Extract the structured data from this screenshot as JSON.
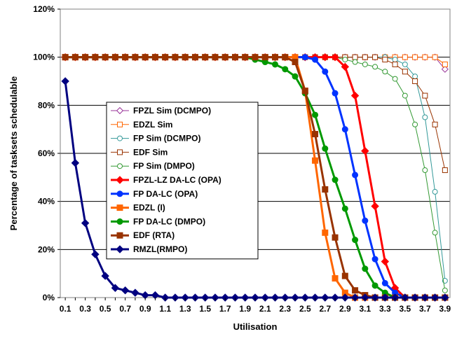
{
  "chart_data": {
    "type": "line",
    "title": "",
    "xlabel": "Utilisation",
    "ylabel": "Percentage of tasksets schedulable",
    "x": [
      0.1,
      0.2,
      0.3,
      0.4,
      0.5,
      0.6,
      0.7,
      0.8,
      0.9,
      1.0,
      1.1,
      1.2,
      1.3,
      1.4,
      1.5,
      1.6,
      1.7,
      1.8,
      1.9,
      2.0,
      2.1,
      2.2,
      2.3,
      2.4,
      2.5,
      2.6,
      2.7,
      2.8,
      2.9,
      3.0,
      3.1,
      3.2,
      3.3,
      3.4,
      3.5,
      3.6,
      3.7,
      3.8,
      3.9
    ],
    "x_tick_labels": [
      "0.1",
      "0.3",
      "0.5",
      "0.7",
      "0.9",
      "1.1",
      "1.3",
      "1.5",
      "1.7",
      "1.9",
      "2.1",
      "2.3",
      "2.5",
      "2.7",
      "2.9",
      "3.1",
      "3.3",
      "3.5",
      "3.7",
      "3.9"
    ],
    "x_tick_values": [
      0.1,
      0.3,
      0.5,
      0.7,
      0.9,
      1.1,
      1.3,
      1.5,
      1.7,
      1.9,
      2.1,
      2.3,
      2.5,
      2.7,
      2.9,
      3.1,
      3.3,
      3.5,
      3.7,
      3.9
    ],
    "xlim": [
      0.05,
      3.95
    ],
    "y_tick_labels": [
      "0%",
      "20%",
      "40%",
      "60%",
      "80%",
      "100%",
      "120%"
    ],
    "y_tick_values": [
      0,
      20,
      40,
      60,
      80,
      100,
      120
    ],
    "ylim": [
      0,
      120
    ],
    "grid": "horizontal",
    "legend_position": "center-left",
    "series": [
      {
        "name": "FPZL Sim (DCMPO)",
        "color": "#993399",
        "marker": "diamond",
        "filled": false,
        "width": 1,
        "values": [
          100,
          100,
          100,
          100,
          100,
          100,
          100,
          100,
          100,
          100,
          100,
          100,
          100,
          100,
          100,
          100,
          100,
          100,
          100,
          100,
          100,
          100,
          100,
          100,
          100,
          100,
          100,
          100,
          100,
          100,
          100,
          100,
          100,
          100,
          100,
          100,
          100,
          100,
          95
        ]
      },
      {
        "name": "EDZL Sim",
        "color": "#ff6600",
        "marker": "square",
        "filled": false,
        "width": 1,
        "values": [
          100,
          100,
          100,
          100,
          100,
          100,
          100,
          100,
          100,
          100,
          100,
          100,
          100,
          100,
          100,
          100,
          100,
          100,
          100,
          100,
          100,
          100,
          100,
          100,
          100,
          100,
          100,
          100,
          100,
          100,
          100,
          100,
          100,
          100,
          100,
          100,
          100,
          100,
          97
        ]
      },
      {
        "name": "FP Sim (DCMPO)",
        "color": "#339999",
        "marker": "circle",
        "filled": false,
        "width": 1,
        "values": [
          100,
          100,
          100,
          100,
          100,
          100,
          100,
          100,
          100,
          100,
          100,
          100,
          100,
          100,
          100,
          100,
          100,
          100,
          100,
          100,
          100,
          100,
          100,
          100,
          100,
          100,
          100,
          100,
          100,
          100,
          100,
          100,
          100,
          99,
          97,
          92,
          75,
          44,
          7
        ]
      },
      {
        "name": "EDF Sim",
        "color": "#993300",
        "marker": "square",
        "filled": false,
        "width": 1,
        "values": [
          100,
          100,
          100,
          100,
          100,
          100,
          100,
          100,
          100,
          100,
          100,
          100,
          100,
          100,
          100,
          100,
          100,
          100,
          100,
          100,
          100,
          100,
          100,
          100,
          100,
          100,
          100,
          100,
          100,
          100,
          100,
          100,
          99,
          97,
          94,
          90,
          84,
          72,
          53
        ]
      },
      {
        "name": "FP Sim (DMPO)",
        "color": "#339933",
        "marker": "circle",
        "filled": false,
        "width": 1,
        "values": [
          100,
          100,
          100,
          100,
          100,
          100,
          100,
          100,
          100,
          100,
          100,
          100,
          100,
          100,
          100,
          100,
          100,
          100,
          100,
          100,
          100,
          100,
          100,
          100,
          100,
          100,
          100,
          100,
          99,
          98,
          97,
          96,
          94,
          91,
          84,
          72,
          53,
          27,
          3
        ]
      },
      {
        "name": "FPZL-LZ DA-LC (OPA)",
        "color": "#ff0000",
        "marker": "diamond",
        "filled": true,
        "width": 3,
        "values": [
          100,
          100,
          100,
          100,
          100,
          100,
          100,
          100,
          100,
          100,
          100,
          100,
          100,
          100,
          100,
          100,
          100,
          100,
          100,
          100,
          100,
          100,
          100,
          100,
          100,
          100,
          100,
          100,
          96,
          84,
          61,
          38,
          15,
          4,
          0,
          0,
          0,
          0,
          0
        ]
      },
      {
        "name": "FP DA-LC (OPA)",
        "color": "#0033ff",
        "marker": "circle",
        "filled": true,
        "width": 3,
        "values": [
          100,
          100,
          100,
          100,
          100,
          100,
          100,
          100,
          100,
          100,
          100,
          100,
          100,
          100,
          100,
          100,
          100,
          100,
          100,
          100,
          100,
          100,
          100,
          100,
          100,
          99,
          94,
          85,
          70,
          51,
          32,
          16,
          6,
          2,
          0,
          0,
          0,
          0,
          0
        ]
      },
      {
        "name": "EDZL (I)",
        "color": "#ff6600",
        "marker": "square",
        "filled": true,
        "width": 3,
        "values": [
          100,
          100,
          100,
          100,
          100,
          100,
          100,
          100,
          100,
          100,
          100,
          100,
          100,
          100,
          100,
          100,
          100,
          100,
          100,
          100,
          100,
          100,
          100,
          100,
          86,
          57,
          27,
          8,
          2,
          0,
          0,
          0,
          0,
          0,
          0,
          0,
          0,
          0,
          0
        ]
      },
      {
        "name": "FP DA-LC (DMPO)",
        "color": "#009900",
        "marker": "circle",
        "filled": true,
        "width": 3,
        "values": [
          100,
          100,
          100,
          100,
          100,
          100,
          100,
          100,
          100,
          100,
          100,
          100,
          100,
          100,
          100,
          100,
          100,
          100,
          100,
          99,
          98,
          97,
          95,
          92,
          85,
          76,
          62,
          49,
          37,
          24,
          12,
          5,
          2,
          0,
          0,
          0,
          0,
          0,
          0
        ]
      },
      {
        "name": "EDF (RTA)",
        "color": "#993300",
        "marker": "square",
        "filled": true,
        "width": 3,
        "values": [
          100,
          100,
          100,
          100,
          100,
          100,
          100,
          100,
          100,
          100,
          100,
          100,
          100,
          100,
          100,
          100,
          100,
          100,
          100,
          100,
          100,
          100,
          100,
          98,
          86,
          68,
          45,
          25,
          9,
          3,
          1,
          0,
          0,
          0,
          0,
          0,
          0,
          0,
          0
        ]
      },
      {
        "name": "RMZL(RMPO)",
        "color": "#000080",
        "marker": "diamond",
        "filled": true,
        "width": 3,
        "values": [
          90,
          56,
          31,
          18,
          9,
          4,
          3,
          2,
          1,
          1,
          0,
          0,
          0,
          0,
          0,
          0,
          0,
          0,
          0,
          0,
          0,
          0,
          0,
          0,
          0,
          0,
          0,
          0,
          0,
          0,
          0,
          0,
          0,
          0,
          0,
          0,
          0,
          0,
          0
        ]
      }
    ]
  }
}
